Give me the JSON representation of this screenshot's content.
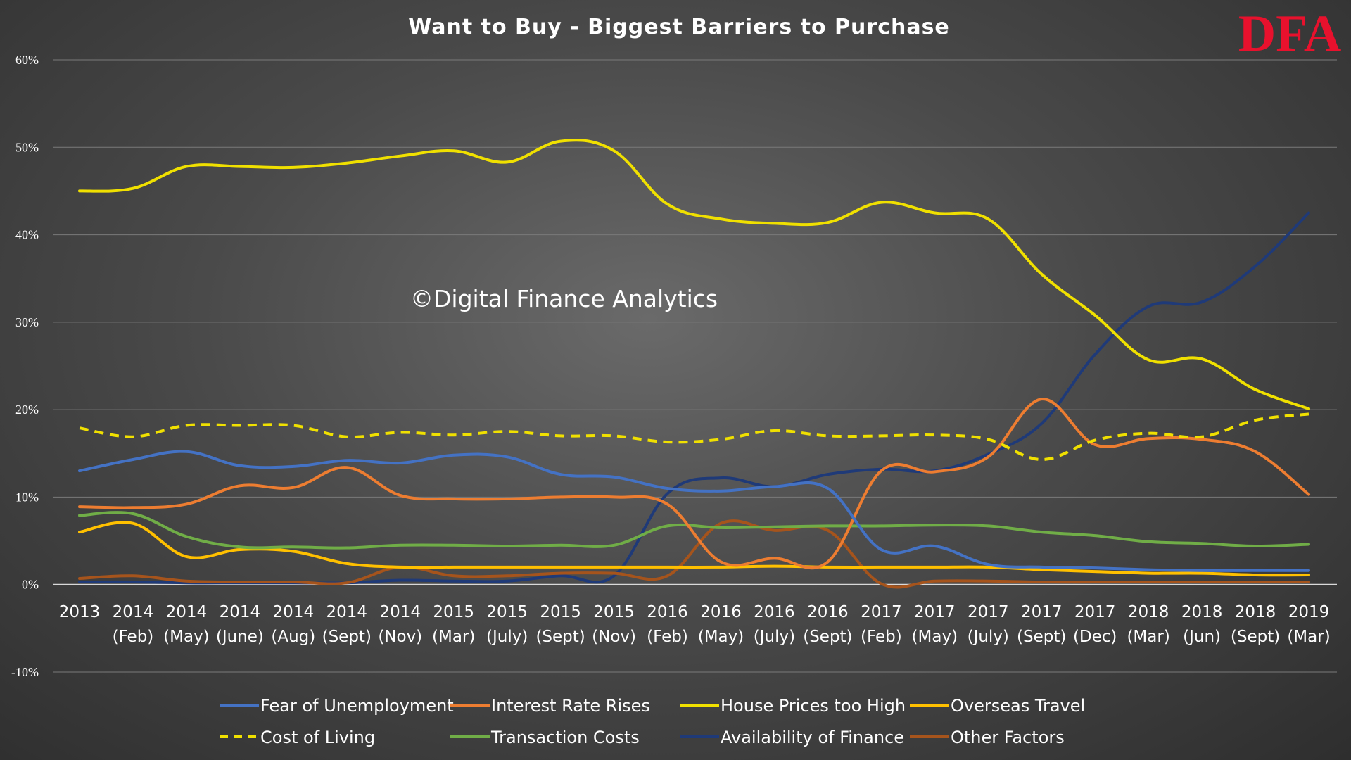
{
  "logo_text": "DFA",
  "watermark": "©Digital Finance Analytics",
  "chart_data": {
    "type": "line",
    "title": "Want to Buy - Biggest Barriers to Purchase",
    "xlabel": "",
    "ylabel": "",
    "ylim": [
      -10,
      60
    ],
    "yticks": [
      "60%",
      "50%",
      "40%",
      "30%",
      "20%",
      "10%",
      "0%",
      "-10%"
    ],
    "grid": true,
    "legend_position": "bottom",
    "categories": [
      [
        "2013",
        ""
      ],
      [
        "2014",
        "(Feb)"
      ],
      [
        "2014",
        "(May)"
      ],
      [
        "2014",
        "(June)"
      ],
      [
        "2014",
        "(Aug)"
      ],
      [
        "2014",
        "(Sept)"
      ],
      [
        "2014",
        "(Nov)"
      ],
      [
        "2015",
        "(Mar)"
      ],
      [
        "2015",
        "(July)"
      ],
      [
        "2015",
        "(Sept)"
      ],
      [
        "2015",
        "(Nov)"
      ],
      [
        "2016",
        "(Feb)"
      ],
      [
        "2016",
        "(May)"
      ],
      [
        "2016",
        "(July)"
      ],
      [
        "2016",
        "(Sept)"
      ],
      [
        "2017",
        "(Feb)"
      ],
      [
        "2017",
        "(May)"
      ],
      [
        "2017",
        "(July)"
      ],
      [
        "2017",
        "(Sept)"
      ],
      [
        "2017",
        "(Dec)"
      ],
      [
        "2018",
        "(Mar)"
      ],
      [
        "2018",
        "(Jun)"
      ],
      [
        "2018",
        "(Sept)"
      ],
      [
        "2019",
        "(Mar)"
      ]
    ],
    "series": [
      {
        "name": "Fear of Unemployment",
        "color": "#4472c4",
        "dashed": false,
        "values": [
          13,
          14.3,
          15.2,
          13.6,
          13.5,
          14.2,
          13.9,
          14.8,
          14.6,
          12.6,
          12.3,
          11,
          10.7,
          11.2,
          11,
          4,
          4.4,
          2.3,
          2,
          1.9,
          1.7,
          1.6,
          1.6,
          1.6
        ]
      },
      {
        "name": "Interest Rate Rises",
        "color": "#ed7d31",
        "dashed": false,
        "values": [
          8.9,
          8.8,
          9.2,
          11.3,
          11.1,
          13.4,
          10.2,
          9.8,
          9.8,
          10,
          10,
          9.2,
          2.6,
          3,
          2.6,
          13,
          12.9,
          14.6,
          21.2,
          16,
          16.7,
          16.6,
          15.2,
          10.3
        ]
      },
      {
        "name": "House Prices too High",
        "color": "#f0e000",
        "dashed": false,
        "values": [
          45,
          45.3,
          47.8,
          47.8,
          47.7,
          48.2,
          49,
          49.6,
          48.3,
          50.7,
          49.6,
          43.5,
          41.8,
          41.3,
          41.4,
          43.7,
          42.5,
          41.8,
          35.5,
          30.8,
          25.7,
          25.8,
          22.3,
          20.1
        ]
      },
      {
        "name": "Overseas Travel",
        "color": "#ffc000",
        "dashed": false,
        "values": [
          6,
          7,
          3.2,
          4,
          3.8,
          2.4,
          2,
          2,
          2,
          2,
          2,
          2,
          2,
          2.1,
          2,
          2,
          2,
          2,
          1.7,
          1.5,
          1.3,
          1.3,
          1.1,
          1.1
        ]
      },
      {
        "name": "Cost of Living",
        "color": "#f0e000",
        "dashed": true,
        "values": [
          17.9,
          16.9,
          18.2,
          18.2,
          18.2,
          16.9,
          17.4,
          17.1,
          17.5,
          17,
          17,
          16.3,
          16.6,
          17.6,
          17,
          17,
          17.1,
          16.6,
          14.3,
          16.5,
          17.3,
          16.9,
          18.8,
          19.5
        ]
      },
      {
        "name": "Transaction Costs",
        "color": "#70ad47",
        "dashed": false,
        "values": [
          7.9,
          8.1,
          5.5,
          4.3,
          4.3,
          4.2,
          4.5,
          4.5,
          4.4,
          4.5,
          4.5,
          6.7,
          6.5,
          6.6,
          6.7,
          6.7,
          6.8,
          6.7,
          6,
          5.6,
          4.9,
          4.7,
          4.4,
          4.6
        ]
      },
      {
        "name": "Availability of Finance",
        "color": "#1f3a78",
        "dashed": false,
        "values": [
          0.3,
          0.3,
          0.2,
          0.2,
          0.2,
          0.2,
          0.5,
          0.4,
          0.4,
          1,
          1,
          10.4,
          12.2,
          11.2,
          12.6,
          13.2,
          13,
          14.9,
          18.4,
          26.3,
          31.8,
          32.3,
          36.4,
          42.5
        ]
      },
      {
        "name": "Other Factors",
        "color": "#a6541c",
        "dashed": false,
        "values": [
          0.7,
          1,
          0.4,
          0.3,
          0.3,
          0.2,
          2,
          1,
          1,
          1.3,
          1.3,
          1,
          7,
          6.2,
          6.2,
          0.1,
          0.4,
          0.4,
          0.3,
          0.3,
          0.3,
          0.3,
          0.3,
          0.3
        ]
      }
    ]
  }
}
